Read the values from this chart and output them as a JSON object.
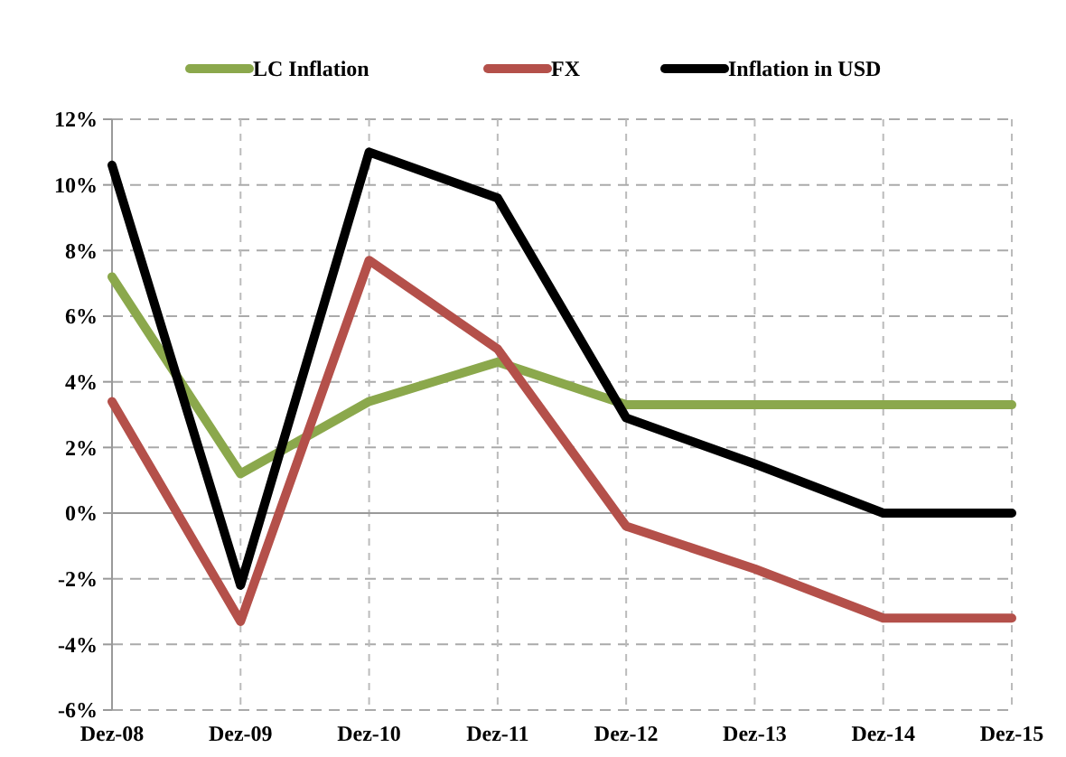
{
  "chart_data": {
    "type": "line",
    "categories": [
      "Dez-08",
      "Dez-09",
      "Dez-10",
      "Dez-11",
      "Dez-12",
      "Dez-13",
      "Dez-14",
      "Dez-15"
    ],
    "series": [
      {
        "name": "LC Inflation",
        "color": "#8ba84c",
        "values": [
          7.2,
          1.2,
          3.4,
          4.6,
          3.3,
          3.3,
          3.3,
          3.3
        ]
      },
      {
        "name": "FX",
        "color": "#b4504a",
        "values": [
          3.4,
          -3.3,
          7.7,
          5.0,
          -0.4,
          -1.7,
          -3.2,
          -3.2
        ]
      },
      {
        "name": "Inflation in USD",
        "color": "#000000",
        "values": [
          10.6,
          -2.2,
          11.0,
          9.6,
          2.9,
          1.5,
          0.0,
          0.0
        ]
      }
    ],
    "ylim": [
      -6,
      12
    ],
    "yticks": [
      {
        "value": -6,
        "label": "-6%"
      },
      {
        "value": -4,
        "label": "-4%"
      },
      {
        "value": -2,
        "label": "-2%"
      },
      {
        "value": 0,
        "label": "0%"
      },
      {
        "value": 2,
        "label": "2%"
      },
      {
        "value": 4,
        "label": "4%"
      },
      {
        "value": 6,
        "label": "6%"
      },
      {
        "value": 8,
        "label": "8%"
      },
      {
        "value": 10,
        "label": "10%"
      },
      {
        "value": 12,
        "label": "12%"
      }
    ],
    "grid": true,
    "legend": "top",
    "marker": "none",
    "line_style": "solid"
  }
}
